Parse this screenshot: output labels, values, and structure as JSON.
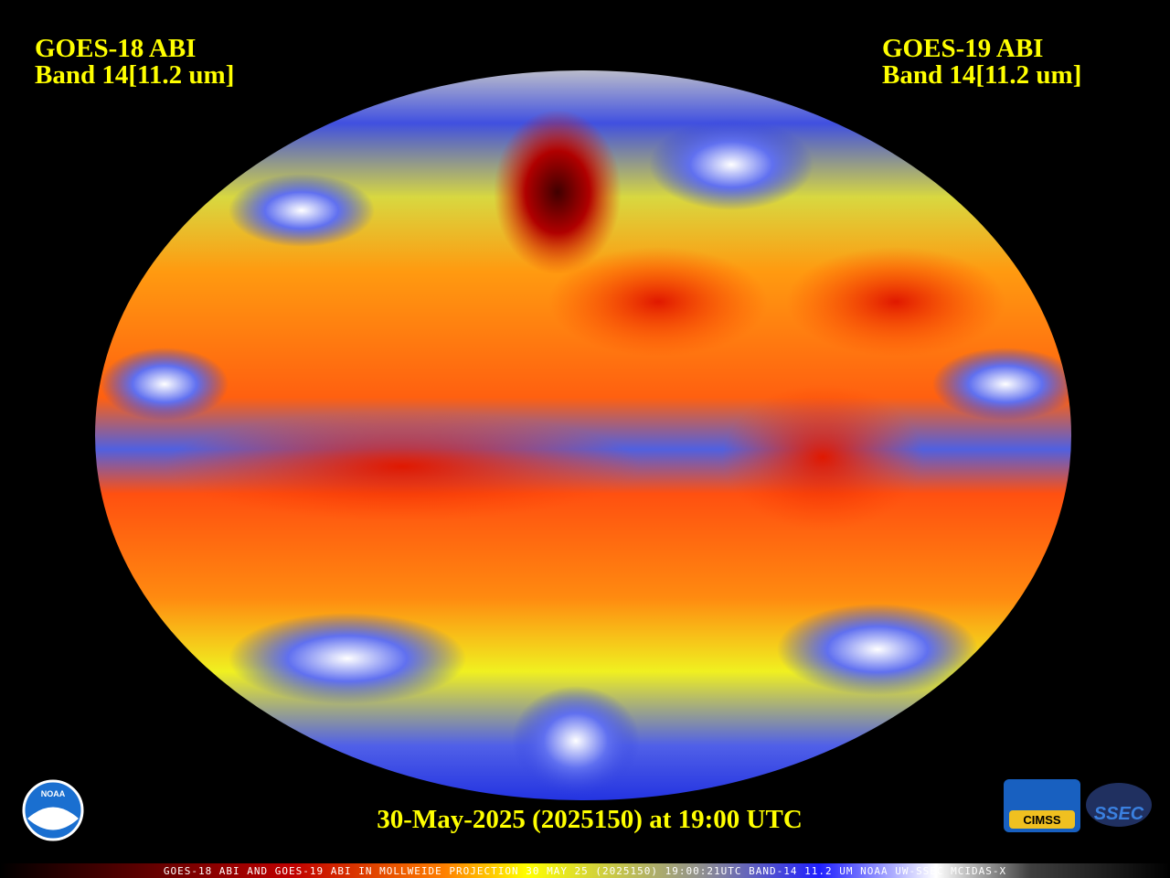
{
  "left_label": {
    "satellite": "GOES-18 ABI",
    "band": "Band 14[11.2 um]"
  },
  "right_label": {
    "satellite": "GOES-19 ABI",
    "band": "Band 14[11.2 um]"
  },
  "timestamp": "30-May-2025 (2025150) at 19:00 UTC",
  "footer": "GOES-18 ABI AND GOES-19 ABI IN MOLLWEIDE PROJECTION 30 MAY 25 (2025150) 19:00:21UTC BAND-14 11.2 UM NOAA UW-SSEC MCIDAS-X",
  "logos": {
    "noaa": "NOAA",
    "cimss": "CIMSS",
    "ssec": "SSEC"
  }
}
